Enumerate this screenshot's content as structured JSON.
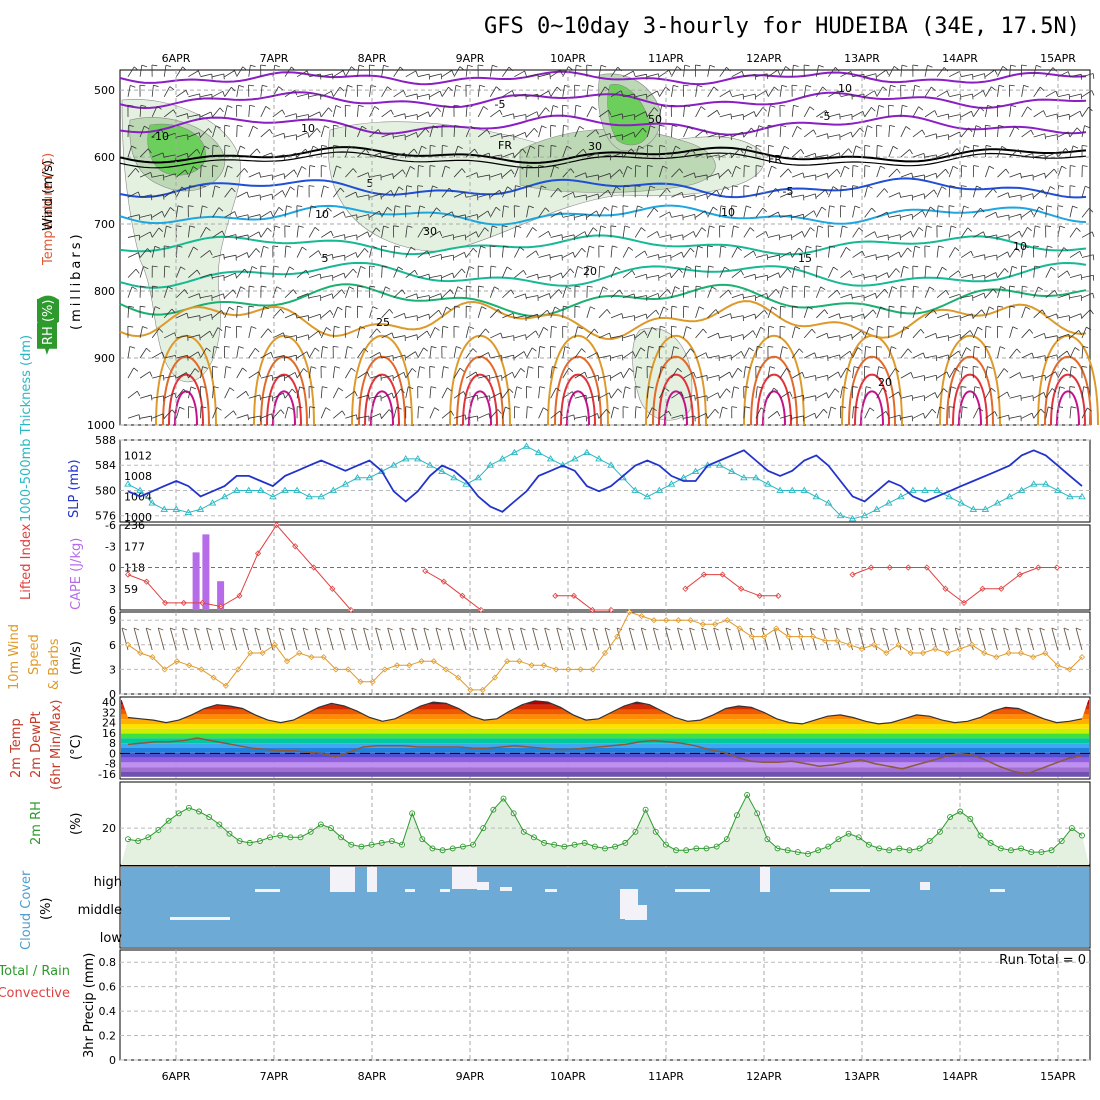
{
  "title": "GFS 0~10day 3-hourly for HUDEIBA (34E, 17.5N)",
  "colors": {
    "purple": "#8b1ec4",
    "blue": "#1f4fd6",
    "cyan": "#1ea6e0",
    "teal": "#17b894",
    "orange": "#dd9a2a",
    "red": "#e0333a",
    "magenta": "#c4128c",
    "rh_green": "#6ccf5c",
    "rh_light": "#e4f1e0",
    "wind": "#6b5a4a",
    "cloud": "#6eaad6",
    "slp": "#2233cc",
    "thk": "#2bb8c4",
    "li": "#e04040",
    "cape": "#b66ce8",
    "w10": "#e09a2a",
    "temp": "#444444",
    "rh2m": "#2e9a2e"
  },
  "x_labels": [
    "6APR",
    "7APR",
    "8APR",
    "9APR",
    "10APR",
    "11APR",
    "12APR",
    "13APR",
    "14APR",
    "15APR"
  ],
  "panels": {
    "upper": {
      "ylabel_wind": "Wind (m/s)",
      "ylabel_temp": "Temperature (°C)",
      "ylabel_rh": "RH (%)",
      "ylabel_mb": "(millibars)",
      "levels": [
        "500",
        "600",
        "700",
        "800",
        "900",
        "1000"
      ],
      "contour_labels": [
        "10",
        "-10",
        "-5",
        "-5",
        "FR",
        "FR",
        "5",
        "-5",
        "10",
        "10",
        "15",
        "20",
        "5",
        "25",
        "20",
        "10",
        "30",
        "50",
        "30",
        "10"
      ]
    },
    "thickness": {
      "label_left": "1000-500mb Thickness (dm)",
      "label_right": "SLP (mb)",
      "left_ticks": [
        "588",
        "584",
        "580",
        "576"
      ],
      "right_ticks": [
        "1012",
        "1008",
        "1004",
        "1000"
      ]
    },
    "cape": {
      "label_left": "Lifted Index",
      "label_right": "CAPE (J/kg)",
      "left_ticks": [
        "-6",
        "-3",
        "0",
        "3",
        "6"
      ],
      "right_ticks": [
        "236",
        "177",
        "118",
        "59"
      ]
    },
    "wind10": {
      "label1": "10m Wind",
      "label2": "Speed",
      "label3": "& Barbs",
      "unit": "(m/s)",
      "ticks": [
        "9",
        "6",
        "3",
        "0"
      ]
    },
    "temp2m": {
      "label1": "2m Temp",
      "label2": "2m DewPt",
      "label3": "(6hr Min/Max)",
      "unit": "(°C)",
      "ticks": [
        "40",
        "32",
        "24",
        "16",
        "8",
        "0",
        "-8",
        "-16"
      ]
    },
    "rh2m": {
      "label": "2m RH",
      "unit": "(%)",
      "ticks": [
        "20"
      ]
    },
    "cloud": {
      "label": "Cloud Cover",
      "unit": "(%)",
      "levels": [
        "high",
        "middle",
        "low"
      ]
    },
    "precip": {
      "label1": "Total / Rain",
      "label2": "Convective",
      "ylabel": "3hr Precip (mm)",
      "ticks": [
        "0.8",
        "0.6",
        "0.4",
        "0.2",
        "0"
      ],
      "run_total": "Run Total = 0"
    }
  },
  "chart_data": [
    {
      "type": "line",
      "name": "slp",
      "ylabel": "SLP (mb)",
      "ylim": [
        999,
        1015
      ],
      "x_unit": "days since 6APR 00Z",
      "values": [
        1005,
        1004,
        1005,
        1006,
        1007,
        1006,
        1004,
        1005,
        1006,
        1008,
        1008,
        1007,
        1006,
        1008,
        1009,
        1010,
        1011,
        1010,
        1009,
        1010,
        1011,
        1009,
        1005,
        1003,
        1005,
        1008,
        1010,
        1009,
        1007,
        1004,
        1002,
        1001,
        1003,
        1005,
        1008,
        1009,
        1010,
        1009,
        1006,
        1005,
        1006,
        1008,
        1010,
        1011,
        1010,
        1008,
        1007,
        1007,
        1010,
        1011,
        1012,
        1013,
        1011,
        1009,
        1008,
        1009,
        1011,
        1012,
        1010,
        1007,
        1004,
        1003,
        1005,
        1007,
        1006,
        1004,
        1003,
        1004,
        1005,
        1006,
        1007,
        1008,
        1009,
        1010,
        1012,
        1013,
        1012,
        1010,
        1008,
        1006
      ]
    },
    {
      "type": "line",
      "name": "thickness",
      "ylabel": "1000-500mb Thickness (dm)",
      "ylim": [
        575,
        588
      ],
      "values": [
        581,
        580,
        578,
        577,
        577,
        576.5,
        577,
        578,
        579,
        580,
        580,
        580,
        579,
        580,
        580,
        579,
        579,
        580,
        581,
        582,
        582,
        583,
        584,
        585,
        585,
        584,
        583,
        582,
        581,
        582,
        584,
        585,
        586,
        587,
        586,
        585,
        584,
        585,
        586,
        585,
        584,
        582,
        580,
        579,
        580,
        581,
        582,
        583,
        584,
        584,
        583,
        582,
        582,
        581,
        580,
        580,
        580,
        579,
        578,
        576,
        575.5,
        576,
        577,
        578,
        579,
        580,
        580,
        580,
        579,
        578,
        577,
        577,
        578,
        579,
        580,
        581,
        581,
        580,
        579,
        579
      ]
    },
    {
      "type": "line",
      "name": "lifted_index",
      "ylim": [
        -6,
        6
      ],
      "values": [
        1,
        2,
        5,
        5,
        5,
        5.5,
        4,
        -2,
        -6,
        -3,
        0,
        3,
        6,
        null,
        null,
        null,
        0.5,
        2,
        4,
        6,
        null,
        null,
        null,
        4,
        4,
        6,
        6,
        null,
        null,
        null,
        3,
        1,
        1,
        3,
        4,
        4,
        null,
        null,
        null,
        1,
        0,
        0,
        0,
        0,
        3,
        5,
        3,
        3,
        1,
        0,
        0,
        null
      ]
    },
    {
      "type": "bar",
      "name": "cape",
      "ylabel": "CAPE (J/kg)",
      "ylim": [
        0,
        236
      ],
      "x": [
        2.2,
        2.3,
        2.45
      ],
      "values": [
        160,
        210,
        80
      ]
    },
    {
      "type": "line",
      "name": "wind10_speed",
      "ylabel": "(m/s)",
      "ylim": [
        0,
        10
      ],
      "values": [
        6,
        5,
        4.5,
        3,
        4,
        3.5,
        3,
        2,
        1,
        3,
        5,
        5,
        6,
        4,
        5,
        4.5,
        4.5,
        3,
        3,
        1.5,
        1.5,
        3,
        3.5,
        3.5,
        4,
        4,
        3,
        2,
        0.5,
        0.5,
        2,
        4,
        4,
        3.5,
        3.5,
        3,
        3,
        3,
        3,
        5,
        7,
        10,
        9.5,
        9,
        9,
        9,
        9,
        8.5,
        8.5,
        9,
        8,
        7,
        7,
        8,
        7,
        7,
        7,
        6.5,
        6.5,
        6,
        5.5,
        6,
        5,
        6,
        5,
        5,
        5.5,
        5,
        5.5,
        6,
        5,
        4.5,
        5,
        5,
        4.5,
        5,
        3.5,
        3,
        4.5
      ]
    },
    {
      "type": "line",
      "name": "temp_2m",
      "ylabel": "(°C)",
      "ylim": [
        -20,
        44
      ],
      "values": [
        28,
        27,
        26,
        24,
        26,
        30,
        35,
        38,
        37,
        35,
        30,
        26,
        24,
        26,
        31,
        36,
        39,
        37,
        33,
        28,
        25,
        27,
        32,
        37,
        40,
        39,
        35,
        29,
        26,
        27,
        33,
        38,
        41,
        40,
        36,
        30,
        26,
        27,
        32,
        37,
        40,
        38,
        33,
        28,
        25,
        26,
        30,
        35,
        37,
        36,
        32,
        27,
        24,
        23,
        26,
        29,
        30,
        28,
        25,
        23,
        24,
        27,
        30,
        29,
        26,
        24,
        25,
        28,
        33,
        36,
        35,
        31,
        27,
        24,
        25,
        27
      ]
    },
    {
      "type": "line",
      "name": "dewpt_2m",
      "ylim": [
        -20,
        44
      ],
      "values": [
        7,
        8,
        9,
        9,
        10,
        12,
        10,
        8,
        6,
        4,
        3,
        2,
        2,
        1,
        0,
        -3,
        1,
        5,
        6,
        6,
        6,
        5,
        5,
        5,
        5,
        4,
        4,
        5,
        6,
        5,
        4,
        3,
        3,
        4,
        5,
        6,
        7,
        9,
        10,
        9,
        8,
        6,
        3,
        1,
        -3,
        -6,
        -7,
        -7,
        -6,
        -8,
        -10,
        -9,
        -7,
        -5,
        -8,
        -10,
        -12,
        -9,
        -6,
        -3,
        0,
        -1,
        -5,
        -10,
        -14,
        -16,
        -12,
        -8,
        -4,
        -2
      ]
    },
    {
      "type": "area",
      "name": "rh_2m",
      "ylabel": "(%)",
      "ylim": [
        0,
        45
      ],
      "values": [
        14,
        13,
        15,
        19,
        24,
        28,
        31,
        29,
        26,
        22,
        17,
        13,
        12,
        13,
        15,
        16,
        15,
        15,
        18,
        22,
        20,
        15,
        11,
        10,
        11,
        12,
        13,
        11,
        28,
        14,
        9,
        8,
        9,
        10,
        11,
        20,
        30,
        36,
        28,
        18,
        15,
        12,
        11,
        10,
        11,
        12,
        10,
        9,
        10,
        12,
        18,
        30,
        18,
        11,
        8,
        8,
        9,
        9,
        10,
        14,
        27,
        38,
        28,
        14,
        9,
        8,
        7,
        6,
        8,
        10,
        14,
        17,
        15,
        11,
        9,
        8,
        9,
        8,
        9,
        13,
        18,
        26,
        29,
        25,
        16,
        12,
        9,
        8,
        9,
        7,
        7,
        8,
        13,
        20,
        16
      ]
    }
  ]
}
